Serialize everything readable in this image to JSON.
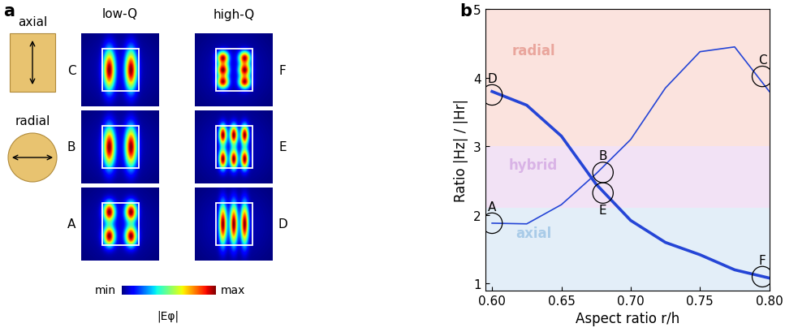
{
  "panel_labels": [
    "a",
    "b"
  ],
  "panel_a": {
    "icons": [
      {
        "label": "axial"
      },
      {
        "label": "radial"
      }
    ],
    "columns": [
      "low-Q",
      "high-Q"
    ],
    "rows": [
      [
        "C",
        "F"
      ],
      [
        "B",
        "E"
      ],
      [
        "A",
        "D"
      ]
    ],
    "colorbar": {
      "min_label": "min",
      "max_label": "max",
      "label": "|Eφ|"
    }
  },
  "chart_data": {
    "type": "line",
    "x": [
      0.6,
      0.625,
      0.65,
      0.675,
      0.7,
      0.725,
      0.75,
      0.775,
      0.8
    ],
    "series": [
      {
        "color": "#2545d6",
        "line_style": "solid",
        "values": [
          1.88,
          1.87,
          2.15,
          2.6,
          3.1,
          3.85,
          4.38,
          4.45,
          3.8
        ]
      },
      {
        "color": "#2545d6",
        "line_style": "solid",
        "values": [
          3.8,
          3.6,
          3.15,
          2.45,
          1.92,
          1.6,
          1.42,
          1.2,
          1.08
        ]
      }
    ],
    "x_label": "Aspect ratio r/h",
    "y_label": "Ratio |Hz| / |Hr|",
    "xlim": [
      0.595,
      0.8
    ],
    "ylim": [
      0.9,
      5
    ],
    "xticks": [
      {
        "value": 0.6,
        "label": "0.60"
      },
      {
        "value": 0.65,
        "label": "0.65"
      },
      {
        "value": 0.7,
        "label": "0.70"
      },
      {
        "value": 0.75,
        "label": "0.75"
      },
      {
        "value": 0.8,
        "label": "0.80"
      }
    ],
    "yticks": [
      1,
      2,
      3,
      4,
      5
    ],
    "regions": [
      {
        "label": "radial",
        "from": 3,
        "to": 5,
        "color": "#fbe3de",
        "text_color": "#e9a59c"
      },
      {
        "label": "hybrid",
        "from": 2.1,
        "to": 3,
        "color": "#f2e2f5",
        "text_color": "#d9b3e6"
      },
      {
        "label": "axial",
        "from": 0.9,
        "to": 2.1,
        "color": "#e3eef8",
        "text_color": "#a9cbe8"
      }
    ],
    "annotations": [
      {
        "text": "D",
        "x": 0.6,
        "y": 3.75
      },
      {
        "text": "A",
        "x": 0.6,
        "y": 1.88
      },
      {
        "text": "B",
        "x": 0.68,
        "y": 2.62
      },
      {
        "text": "E",
        "x": 0.68,
        "y": 2.32
      },
      {
        "text": "C",
        "x": 0.795,
        "y": 4.02
      },
      {
        "text": "F",
        "x": 0.795,
        "y": 1.1
      }
    ]
  }
}
